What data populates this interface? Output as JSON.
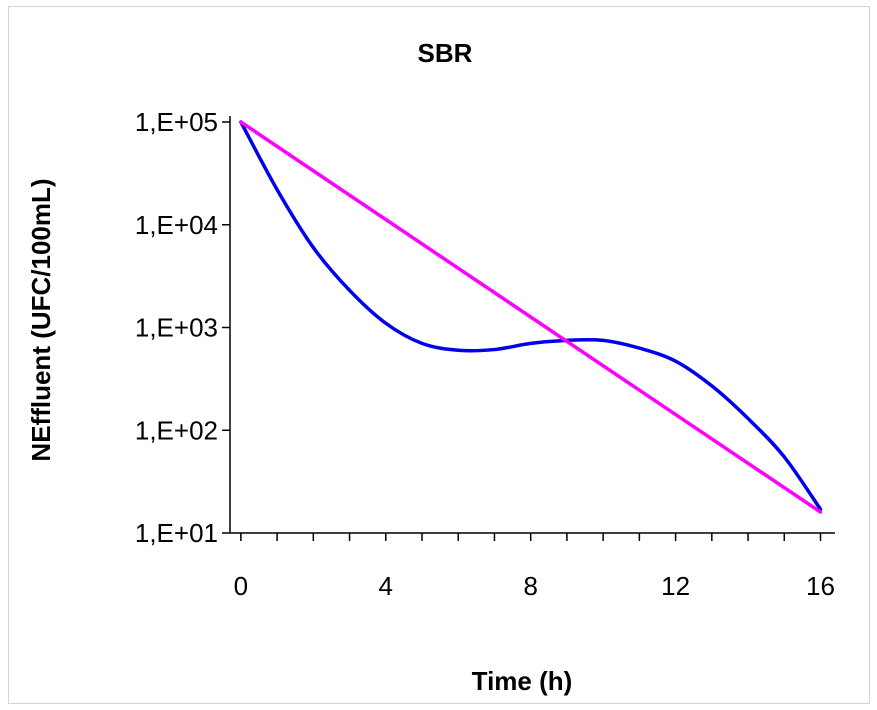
{
  "chart_data": {
    "type": "line",
    "title": "SBR",
    "xlabel": "Time (h)",
    "ylabel": "NEffluent (UFC/100mL)",
    "xlim": [
      -0.3,
      16.4
    ],
    "x_ticks": [
      0,
      4,
      8,
      12,
      16
    ],
    "x_tick_labels": [
      "0",
      "4",
      "8",
      "12",
      "16"
    ],
    "y_scale": "log",
    "ylim": [
      10,
      100000
    ],
    "y_ticks": [
      10,
      100,
      1000,
      10000,
      100000
    ],
    "y_tick_labels": [
      "1,E+01",
      "1,E+02",
      "1,E+03",
      "1,E+04",
      "1,E+05"
    ],
    "grid": false,
    "legend": "none",
    "series": [
      {
        "color": "#0000ee",
        "x": [
          0,
          1,
          2,
          3,
          4,
          5,
          6,
          7,
          8,
          9,
          10,
          11,
          12,
          13,
          14,
          15,
          16
        ],
        "y": [
          100000,
          22000,
          6000,
          2300,
          1100,
          700,
          600,
          610,
          700,
          750,
          750,
          630,
          470,
          270,
          130,
          55,
          17
        ]
      },
      {
        "color": "#ff00ff",
        "x": [
          0,
          16
        ],
        "y": [
          100000,
          16
        ]
      }
    ]
  }
}
